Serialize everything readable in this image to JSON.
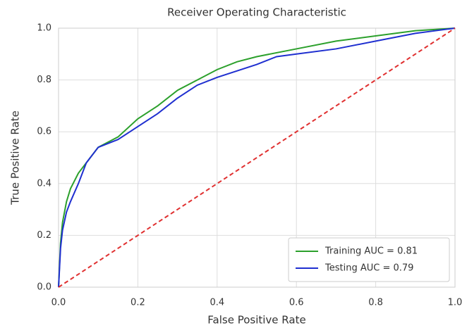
{
  "chart_data": {
    "type": "line",
    "title": "Receiver Operating Characteristic",
    "xlabel": "False Positive Rate",
    "ylabel": "True Positive Rate",
    "xlim": [
      0,
      1
    ],
    "ylim": [
      0,
      1
    ],
    "xticks": [
      {
        "value": 0,
        "label": "0.0"
      },
      0.2,
      0.4,
      0.6,
      0.8,
      {
        "value": 1,
        "label": "1.0"
      }
    ],
    "yticks": [
      {
        "value": 0,
        "label": "0.0"
      },
      0.2,
      0.4,
      0.6,
      0.8,
      {
        "value": 1,
        "label": "1.0"
      }
    ],
    "grid": true,
    "legend": "lower right",
    "series": [
      {
        "name": "Training AUC = 0.81",
        "color": "#2ca02c",
        "x": [
          0,
          0.005,
          0.01,
          0.02,
          0.03,
          0.05,
          0.08,
          0.1,
          0.15,
          0.2,
          0.25,
          0.3,
          0.35,
          0.4,
          0.45,
          0.5,
          0.6,
          0.7,
          0.8,
          0.9,
          1
        ],
        "values": [
          0,
          0.17,
          0.25,
          0.33,
          0.38,
          0.44,
          0.5,
          0.54,
          0.58,
          0.65,
          0.7,
          0.76,
          0.8,
          0.84,
          0.87,
          0.89,
          0.92,
          0.95,
          0.97,
          0.99,
          1
        ]
      },
      {
        "name": "Testing AUC = 0.79",
        "color": "#1f2fd0",
        "x": [
          0,
          0.005,
          0.01,
          0.02,
          0.03,
          0.05,
          0.07,
          0.1,
          0.15,
          0.2,
          0.25,
          0.3,
          0.35,
          0.4,
          0.5,
          0.55,
          0.6,
          0.7,
          0.8,
          0.9,
          0.95,
          1
        ],
        "values": [
          0,
          0.15,
          0.22,
          0.29,
          0.33,
          0.4,
          0.48,
          0.54,
          0.57,
          0.62,
          0.67,
          0.73,
          0.78,
          0.81,
          0.86,
          0.89,
          0.9,
          0.92,
          0.95,
          0.98,
          0.99,
          1
        ]
      },
      {
        "color": "#e03030",
        "linestyle": "dashed",
        "x": [
          0,
          1
        ],
        "values": [
          0,
          1
        ]
      }
    ]
  }
}
